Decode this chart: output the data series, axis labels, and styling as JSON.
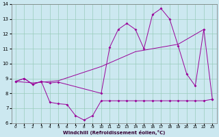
{
  "xlabel": "Windchill (Refroidissement éolien,°C)",
  "background_color": "#cce8f0",
  "grid_color": "#99ccbb",
  "line_color": "#990099",
  "xlim": [
    -0.5,
    23.5
  ],
  "ylim": [
    6,
    14
  ],
  "yticks": [
    6,
    7,
    8,
    9,
    10,
    11,
    12,
    13,
    14
  ],
  "xticks": [
    0,
    1,
    2,
    3,
    4,
    5,
    6,
    7,
    8,
    9,
    10,
    11,
    12,
    13,
    14,
    15,
    16,
    17,
    18,
    19,
    20,
    21,
    22,
    23
  ],
  "line1_x": [
    0,
    1,
    2,
    3,
    4,
    5,
    10,
    11,
    12,
    13,
    14,
    15,
    16,
    17,
    18,
    19,
    20,
    21,
    22,
    23
  ],
  "line1_y": [
    8.8,
    9.0,
    8.6,
    8.8,
    8.7,
    8.75,
    8.0,
    11.1,
    12.3,
    12.7,
    12.3,
    11.0,
    13.3,
    13.7,
    13.0,
    11.2,
    9.3,
    8.5,
    12.3,
    7.6
  ],
  "line2_x": [
    0,
    1,
    2,
    3,
    4,
    5,
    6,
    7,
    8,
    9,
    10,
    11,
    12,
    13,
    14,
    15,
    16,
    17,
    18,
    19,
    20,
    21,
    22,
    23
  ],
  "line2_y": [
    8.8,
    9.0,
    8.6,
    8.8,
    7.4,
    7.3,
    7.25,
    6.5,
    6.2,
    6.5,
    7.5,
    7.5,
    7.5,
    7.5,
    7.5,
    7.5,
    7.5,
    7.5,
    7.5,
    7.5,
    7.5,
    7.5,
    7.5,
    7.6
  ],
  "line3_x": [
    0,
    2,
    5,
    10,
    14,
    15,
    19,
    22
  ],
  "line3_y": [
    8.8,
    8.7,
    8.85,
    9.8,
    10.8,
    10.9,
    11.3,
    12.3
  ],
  "figsize": [
    3.2,
    2.0
  ],
  "dpi": 100
}
